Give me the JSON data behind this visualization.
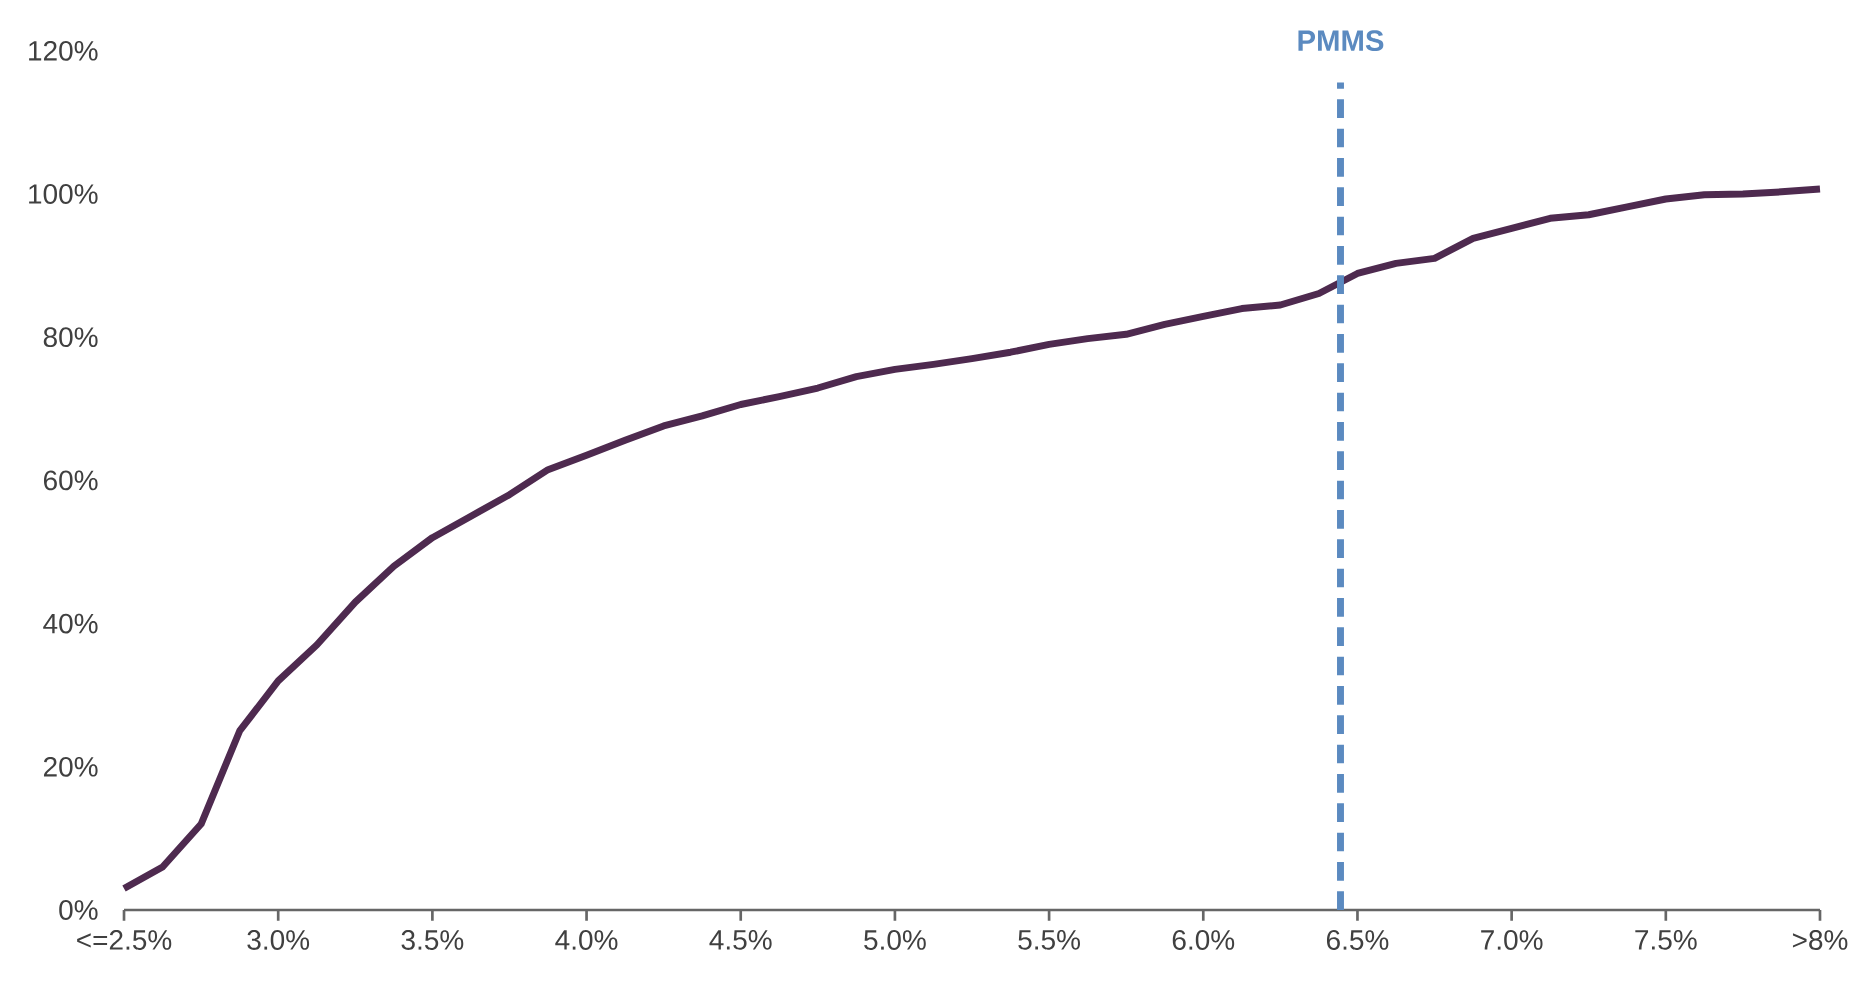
{
  "chart_data": {
    "type": "line",
    "x": [
      2.5,
      2.625,
      2.75,
      2.875,
      3.0,
      3.125,
      3.25,
      3.375,
      3.5,
      3.625,
      3.75,
      3.875,
      4.0,
      4.125,
      4.25,
      4.375,
      4.5,
      4.625,
      4.75,
      4.875,
      5.0,
      5.125,
      5.25,
      5.375,
      5.5,
      5.625,
      5.75,
      5.875,
      6.0,
      6.125,
      6.25,
      6.375,
      6.5,
      6.625,
      6.75,
      6.875,
      7.0,
      7.125,
      7.25,
      7.375,
      7.5,
      7.625,
      7.75,
      7.875,
      8.0
    ],
    "series": [
      {
        "color": "#4e2a4f",
        "values": [
          3,
          6,
          12,
          25,
          32,
          37,
          43,
          48,
          52,
          55,
          58,
          61.5,
          63.5,
          65.6,
          67.6,
          69,
          70.6,
          71.7,
          72.9,
          74.5,
          75.5,
          76.2,
          77,
          77.9,
          79,
          79.8,
          80.4,
          81.8,
          82.9,
          84,
          84.5,
          86.1,
          88.9,
          90.3,
          91,
          93.8,
          95.2,
          96.6,
          97.1,
          98.2,
          99.3,
          99.9,
          100,
          100.3,
          100.7
        ]
      }
    ],
    "xlim": [
      2.5,
      8
    ],
    "xticks": [
      {
        "value": 2.5,
        "label": "<=2.5%"
      },
      {
        "value": 3.0,
        "label": "3.0%"
      },
      {
        "value": 3.5,
        "label": "3.5%"
      },
      {
        "value": 4.0,
        "label": "4.0%"
      },
      {
        "value": 4.5,
        "label": "4.5%"
      },
      {
        "value": 5.0,
        "label": "5.0%"
      },
      {
        "value": 5.5,
        "label": "5.5%"
      },
      {
        "value": 6.0,
        "label": "6.0%"
      },
      {
        "value": 6.5,
        "label": "6.5%"
      },
      {
        "value": 7.0,
        "label": "7.0%"
      },
      {
        "value": 7.5,
        "label": "7.5%"
      },
      {
        "value": 8.0,
        "label": ">8%"
      }
    ],
    "ylim": [
      0,
      120
    ],
    "yticks": [
      {
        "value": 0,
        "label": "0%"
      },
      {
        "value": 20,
        "label": "20%"
      },
      {
        "value": 40,
        "label": "40%"
      },
      {
        "value": 60,
        "label": "60%"
      },
      {
        "value": 80,
        "label": "80%"
      },
      {
        "value": 100,
        "label": "100%"
      },
      {
        "value": 120,
        "label": "120%"
      }
    ],
    "ref_lines": [
      {
        "axis": "x",
        "value": 6.445,
        "label": "PMMS",
        "color": "#5b8ac0",
        "line_style": "dashed"
      }
    ],
    "grid": false,
    "legend": false,
    "marker": "none",
    "line_style": "solid"
  }
}
